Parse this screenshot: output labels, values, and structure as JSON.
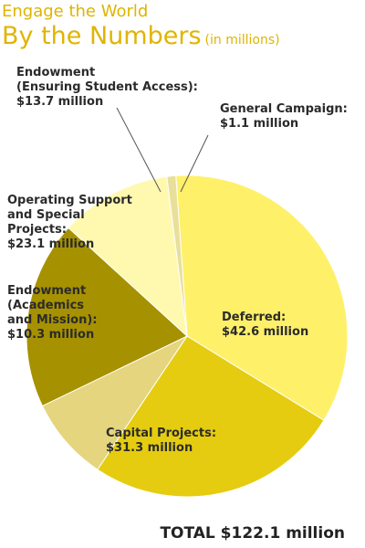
{
  "header": {
    "supertitle": "Engage the World",
    "title": "By the Numbers",
    "units": "(in millions)"
  },
  "total": "TOTAL $122.1 million",
  "chart_data": {
    "type": "pie",
    "slices": [
      {
        "label_lines": [
          "Deferred:",
          "$42.6 million"
        ],
        "value": 42.6,
        "color": "#fff06a"
      },
      {
        "label_lines": [
          "Capital Projects:",
          "$31.3 million"
        ],
        "value": 31.3,
        "color": "#e5cc10"
      },
      {
        "label_lines": [
          "Endowment",
          "(Academics",
          "and Mission):",
          "$10.3 million"
        ],
        "value": 10.3,
        "color": "#e4d57e"
      },
      {
        "label_lines": [
          "Operating Support",
          "and Special",
          "Projects:",
          "$23.1 million"
        ],
        "value": 23.1,
        "color": "#a69100"
      },
      {
        "label_lines": [
          "Endowment",
          "(Ensuring Student Access):",
          "$13.7 million"
        ],
        "value": 13.7,
        "color": "#fff9b0"
      },
      {
        "label_lines": [
          "General Campaign:",
          "$1.1 million"
        ],
        "value": 1.1,
        "color": "#e8df9a"
      }
    ]
  }
}
